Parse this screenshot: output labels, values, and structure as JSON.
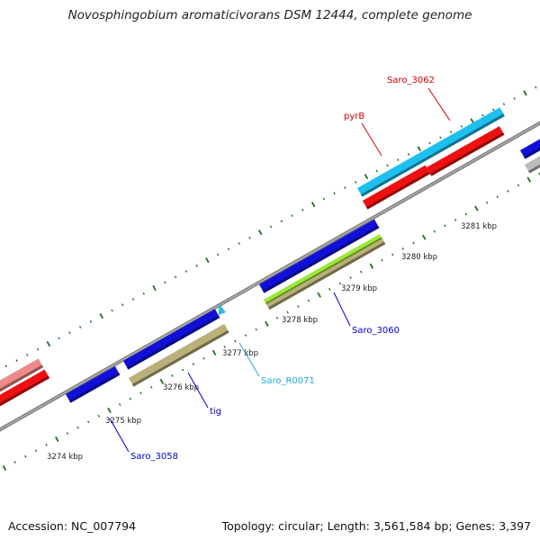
{
  "title": "Novosphingobium aromaticivorans DSM 12444, complete genome",
  "footer": {
    "accession": "Accession: NC_007794",
    "stats": "Topology: circular; Length: 3,561,584 bp; Genes: 3,397"
  },
  "colors": {
    "backbone": "#7f7f7f",
    "ticks": "#1f6e1f",
    "cds_blue": "#1010d8",
    "cds_red": "#ee1111",
    "cds_cyan": "#1ec0ee",
    "cds_olive": "#b9b07a",
    "cds_lime": "#9be835",
    "cds_pink": "#ee8a8a",
    "cds_gray": "#bdbdbd",
    "trna_cyan": "#34b8e8"
  },
  "ticks": [
    "3274 kbp",
    "3275 kbp",
    "3276 kbp",
    "3277 kbp",
    "3278 kbp",
    "3279 kbp",
    "3280 kbp",
    "3281 kbp"
  ],
  "gene_labels": [
    {
      "text": "Saro_3062",
      "color": "#cc0000"
    },
    {
      "text": "pyrB",
      "color": "#cc0000"
    },
    {
      "text": "Saro_3060",
      "color": "#0000cc"
    },
    {
      "text": "Saro_R0071",
      "color": "#22aadd"
    },
    {
      "text": "tig",
      "color": "#0000cc"
    },
    {
      "text": "Saro_3058",
      "color": "#0000cc"
    }
  ]
}
